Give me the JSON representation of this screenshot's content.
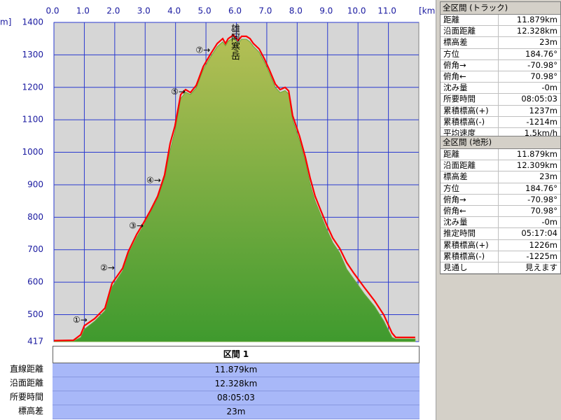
{
  "chart_data": {
    "type": "area",
    "x_label": "[km]",
    "y_label": "m]",
    "x": [
      0,
      0.64,
      0.88,
      1.0,
      1.34,
      1.68,
      1.91,
      2.26,
      2.44,
      2.72,
      2.95,
      3.18,
      3.41,
      3.64,
      3.82,
      3.98,
      4.17,
      4.33,
      4.49,
      4.68,
      4.91,
      5.14,
      5.37,
      5.55,
      5.64,
      5.73,
      5.9,
      6.06,
      6.17,
      6.33,
      6.45,
      6.56,
      6.75,
      6.93,
      7.09,
      7.28,
      7.44,
      7.6,
      7.72,
      7.85,
      8.08,
      8.27,
      8.43,
      8.59,
      8.77,
      8.96,
      9.17,
      9.4,
      9.63,
      9.86,
      10.2,
      10.55,
      10.85,
      11.01,
      11.12,
      11.24,
      11.58,
      11.88
    ],
    "series": [
      {
        "color": "#6aa83a",
        "values": [
          417,
          418,
          430,
          455,
          480,
          512,
          585,
          635,
          685,
          738,
          775,
          815,
          858,
          920,
          1005,
          1065,
          1165,
          1185,
          1178,
          1198,
          1255,
          1292,
          1325,
          1340,
          1328,
          1342,
          1352,
          1336,
          1348,
          1348,
          1340,
          1326,
          1308,
          1276,
          1243,
          1200,
          1184,
          1190,
          1180,
          1100,
          1035,
          970,
          900,
          850,
          808,
          765,
          722,
          690,
          640,
          610,
          565,
          525,
          480,
          450,
          430,
          425,
          425,
          425
        ]
      },
      {
        "color": "#ff0000",
        "values": [
          420,
          421,
          438,
          466,
          488,
          520,
          596,
          643,
          693,
          747,
          783,
          822,
          865,
          930,
          1027,
          1081,
          1178,
          1193,
          1184,
          1206,
          1264,
          1301,
          1335,
          1350,
          1335,
          1350,
          1361,
          1344,
          1357,
          1357,
          1350,
          1335,
          1318,
          1286,
          1253,
          1210,
          1193,
          1200,
          1189,
          1113,
          1049,
          984,
          919,
          865,
          822,
          779,
          736,
          704,
          660,
          628,
          585,
          542,
          499,
          466,
          443,
          430,
          430,
          430
        ]
      }
    ],
    "xlim": [
      0,
      12
    ],
    "xticks": [
      {
        "value": 0,
        "label": "0.0"
      },
      {
        "value": 1,
        "label": "1.0"
      },
      {
        "value": 2,
        "label": "2.0"
      },
      {
        "value": 3,
        "label": "3.0"
      },
      {
        "value": 4,
        "label": "4.0"
      },
      {
        "value": 5,
        "label": "5.0"
      },
      {
        "value": 6,
        "label": "6.0"
      },
      {
        "value": 7,
        "label": "7.0"
      },
      {
        "value": 8,
        "label": "8.0"
      },
      {
        "value": 9,
        "label": "9.0"
      },
      {
        "value": 10,
        "label": "10.0"
      },
      {
        "value": 11,
        "label": "11.0"
      }
    ],
    "ylim": [
      417,
      1400
    ],
    "yticks": [
      417,
      500,
      600,
      700,
      800,
      900,
      1000,
      1100,
      1200,
      1300,
      1400
    ],
    "grid": true,
    "annotations": [
      {
        "text": "①→",
        "x": 1.1,
        "y": 483
      },
      {
        "text": "②→",
        "x": 2.0,
        "y": 643
      },
      {
        "text": "③→",
        "x": 2.95,
        "y": 773
      },
      {
        "text": "④→",
        "x": 3.52,
        "y": 913
      },
      {
        "text": "⑤→",
        "x": 4.33,
        "y": 1185
      },
      {
        "text": "⑦→",
        "x": 5.14,
        "y": 1314
      }
    ],
    "peak_label": {
      "text": "雄阿寒岳",
      "x": 5.93,
      "y": 1400
    }
  },
  "section_table": {
    "header": "区間 1",
    "rows": [
      [
        "直線距離",
        "11.879km"
      ],
      [
        "沿面距離",
        "12.328km"
      ],
      [
        "所要時間",
        "08:05:03"
      ],
      [
        "標高差",
        "23m"
      ]
    ]
  },
  "track_panel": {
    "title": "全区間 (トラック)",
    "rows": [
      [
        "距離",
        "11.879km"
      ],
      [
        "沿面距離",
        "12.328km"
      ],
      [
        "標高差",
        "23m"
      ],
      [
        "方位",
        "184.76°"
      ],
      [
        "俯角→",
        "-70.98°"
      ],
      [
        "俯角←",
        "70.98°"
      ],
      [
        "沈み量",
        "-0m"
      ],
      [
        "所要時間",
        "08:05:03"
      ],
      [
        "累積標高(+)",
        "1237m"
      ],
      [
        "累積標高(-)",
        "-1214m"
      ],
      [
        "平均速度",
        "1.5km/h"
      ]
    ]
  },
  "terrain_panel": {
    "title": "全区間 (地形)",
    "rows": [
      [
        "距離",
        "11.879km"
      ],
      [
        "沿面距離",
        "12.309km"
      ],
      [
        "標高差",
        "23m"
      ],
      [
        "方位",
        "184.76°"
      ],
      [
        "俯角→",
        "-70.98°"
      ],
      [
        "俯角←",
        "70.98°"
      ],
      [
        "沈み量",
        "-0m"
      ],
      [
        "推定時間",
        "05:17:04"
      ],
      [
        "累積標高(+)",
        "1226m"
      ],
      [
        "累積標高(-)",
        "-1225m"
      ],
      [
        "見通し",
        "見えます"
      ]
    ]
  }
}
